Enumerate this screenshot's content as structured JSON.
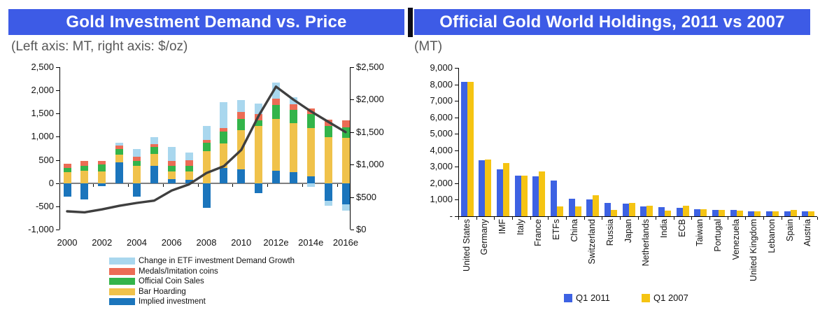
{
  "colors": {
    "banner_blue": "#3d5be6",
    "divider_dark": "#0c0c16",
    "zero_line_gray": "#808080",
    "axis_black": "#000000"
  },
  "chart_data": [
    {
      "type": "bar",
      "subtype": "stacked-bars-with-line",
      "title": "Gold Investment Demand vs. Price",
      "subtitle": "(Left axis: MT, right axis: $/oz)",
      "grid": false,
      "legend_position": "bottom-left",
      "categories": [
        "2000",
        "2001",
        "2002",
        "2003",
        "2004",
        "2005",
        "2006",
        "2007",
        "2008",
        "2009",
        "2010",
        "2011",
        "2012e",
        "2013e",
        "2014e",
        "2015e",
        "2016e"
      ],
      "xtick_labels": [
        "2000",
        "2002",
        "2004",
        "2006",
        "2008",
        "2010",
        "2012e",
        "2014e",
        "2016e"
      ],
      "left_axis": {
        "label": "MT",
        "min": -1000,
        "max": 2500,
        "ticks": [
          "2,500",
          "2,000",
          "1,500",
          "1,000",
          "500",
          "0",
          "-500",
          "-1,000"
        ]
      },
      "right_axis": {
        "label": "$/oz",
        "min": 0,
        "max": 2500,
        "ticks": [
          "$2,500",
          "$2,000",
          "$1,500",
          "$1,000",
          "$500",
          "$0"
        ]
      },
      "series": [
        {
          "name": "Implied investment",
          "key": "implied-investment",
          "color": "#1b75bc",
          "values": [
            -290,
            -350,
            -60,
            450,
            -290,
            375,
            90,
            65,
            -525,
            330,
            290,
            -215,
            260,
            230,
            140,
            -385,
            -450
          ]
        },
        {
          "name": "Bar Hoarding",
          "key": "bar-hoarding",
          "color": "#f0c24b",
          "values": [
            230,
            270,
            255,
            160,
            375,
            255,
            155,
            180,
            690,
            520,
            850,
            1230,
            1120,
            1060,
            1040,
            995,
            975
          ]
        },
        {
          "name": "Official Coin Sales",
          "key": "official-coin-sales",
          "color": "#33b44a",
          "values": [
            100,
            105,
            145,
            120,
            100,
            155,
            130,
            130,
            175,
            255,
            250,
            130,
            310,
            285,
            305,
            240,
            230
          ]
        },
        {
          "name": "Medals/Imitation coins",
          "key": "medals-imitation-coins",
          "color": "#ec6c55",
          "values": [
            90,
            100,
            85,
            85,
            100,
            50,
            100,
            125,
            70,
            85,
            150,
            130,
            130,
            130,
            130,
            135,
            155
          ]
        },
        {
          "name": "Change in ETF investment Demand Growth",
          "key": "etf-demand-change",
          "color": "#a9d7ee",
          "values": [
            0,
            0,
            0,
            60,
            155,
            150,
            305,
            165,
            305,
            560,
            250,
            225,
            345,
            140,
            -75,
            -100,
            -140
          ]
        }
      ],
      "line_series": {
        "name": "Gold price",
        "axis": "right",
        "unit": "$/oz",
        "color": "#3f3f3f",
        "values": [
          280,
          265,
          310,
          365,
          410,
          445,
          600,
          695,
          870,
          975,
          1225,
          1750,
          2200,
          2000,
          1820,
          1660,
          1500
        ]
      }
    },
    {
      "type": "bar",
      "subtype": "grouped",
      "title": "Official Gold World Holdings, 2011 vs 2007",
      "subtitle": "(MT)",
      "grid": false,
      "legend_position": "bottom-center",
      "categories": [
        "United States",
        "Germany",
        "IMF",
        "Italy",
        "France",
        "ETFs",
        "China",
        "Switzerland",
        "Russia",
        "Japan",
        "Netherlands",
        "India",
        "ECB",
        "Taiwan",
        "Portugal",
        "Venezuela",
        "United Kingdom",
        "Lebanon",
        "Spain",
        "Austria"
      ],
      "y_axis": {
        "label": "MT",
        "min": 0,
        "max": 9000,
        "ticks": [
          "9,000",
          "8,000",
          "7,000",
          "6,000",
          "5,000",
          "4,000",
          "3,000",
          "2,000",
          "1,000",
          "-"
        ]
      },
      "series": [
        {
          "name": "Q1 2011",
          "key": "q1-2011",
          "color": "#3d62e3",
          "values": [
            8130,
            3400,
            2830,
            2450,
            2435,
            2180,
            1055,
            1040,
            810,
            775,
            615,
            560,
            500,
            425,
            385,
            365,
            310,
            290,
            282,
            280
          ]
        },
        {
          "name": "Q1 2007",
          "key": "q1-2007",
          "color": "#f5c412",
          "values": [
            8130,
            3445,
            3220,
            2450,
            2710,
            600,
            600,
            1290,
            400,
            800,
            640,
            360,
            640,
            425,
            385,
            360,
            310,
            290,
            400,
            290
          ]
        }
      ]
    }
  ]
}
